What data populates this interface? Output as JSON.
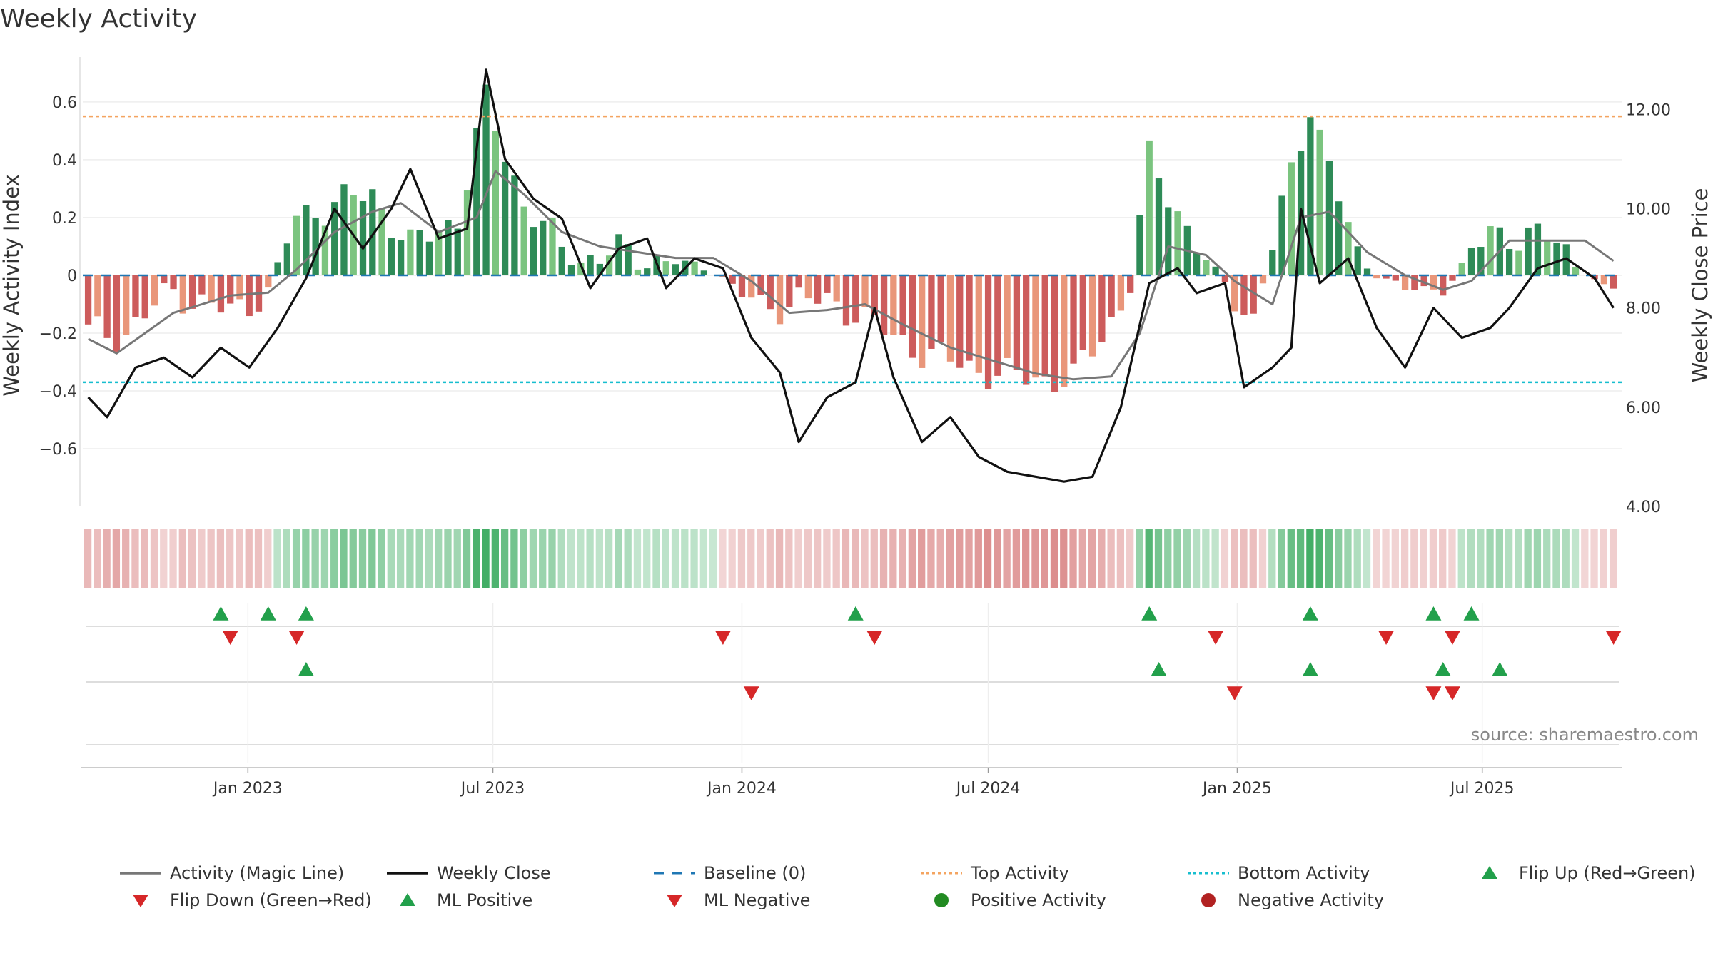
{
  "chart_data": {
    "type": "bar",
    "title": "Weekly Activity",
    "ylabel": "Weekly Activity Index",
    "y2label": "Weekly Close Price",
    "ylim": [
      -0.8,
      0.78
    ],
    "y2lim": [
      4.0,
      13.2
    ],
    "yticks": [
      0.6,
      0.4,
      0.2,
      0,
      -0.2,
      -0.4,
      -0.6
    ],
    "ytick_labels": [
      "0.6",
      "0.4",
      "0.2",
      "0",
      "−0.2",
      "−0.4",
      "−0.6"
    ],
    "y2ticks": [
      12.0,
      10.0,
      8.0,
      6.0,
      4.0
    ],
    "y2tick_labels": [
      "12.00",
      "10.00",
      "8.00",
      "6.00",
      "4.00"
    ],
    "xticks": [
      {
        "label": "Jan 2023",
        "date": "2023-01-01"
      },
      {
        "label": "Jul 2023",
        "date": "2023-07-01"
      },
      {
        "label": "Jan 2024",
        "date": "2024-01-01"
      },
      {
        "label": "Jul 2024",
        "date": "2024-07-01"
      },
      {
        "label": "Jan 2025",
        "date": "2025-01-01"
      },
      {
        "label": "Jul 2025",
        "date": "2025-07-01"
      }
    ],
    "x_start": "2022-09-05",
    "top_activity": 0.55,
    "bottom_activity": -0.37,
    "source": "source: sharemaestro.com",
    "colors": {
      "strong_green": "#2e8b57",
      "light_green": "#7bc47f",
      "strong_red": "#cd5c5c",
      "light_red": "#e9967a",
      "magic_line": "#777777",
      "close": "#111111",
      "baseline": "#1f77b4",
      "top": "#f4a460",
      "bottom": "#17becf",
      "marker_up": "#22a04b",
      "marker_down": "#d62728"
    },
    "activity_weeks": [
      {
        "date": "2022-09-05",
        "value": -0.2
      },
      {
        "date": "2022-10-03",
        "value": -0.2
      },
      {
        "date": "2022-11-07",
        "value": -0.05
      },
      {
        "date": "2022-11-28",
        "value": -0.1
      },
      {
        "date": "2022-12-19",
        "value": -0.13
      },
      {
        "date": "2023-01-16",
        "value": -0.05
      },
      {
        "date": "2023-02-06",
        "value": 0.2
      },
      {
        "date": "2023-03-06",
        "value": 0.25
      },
      {
        "date": "2023-04-03",
        "value": 0.28
      },
      {
        "date": "2023-05-01",
        "value": 0.1
      },
      {
        "date": "2023-06-05",
        "value": 0.2
      },
      {
        "date": "2023-06-26",
        "value": 0.6
      },
      {
        "date": "2023-07-24",
        "value": 0.25
      },
      {
        "date": "2023-08-28",
        "value": 0.05
      },
      {
        "date": "2023-10-02",
        "value": 0.08
      },
      {
        "date": "2023-11-06",
        "value": 0.05
      },
      {
        "date": "2023-12-11",
        "value": 0.02
      },
      {
        "date": "2024-01-15",
        "value": -0.12
      },
      {
        "date": "2024-02-12",
        "value": -0.08
      },
      {
        "date": "2024-03-25",
        "value": -0.12
      },
      {
        "date": "2024-04-22",
        "value": -0.22
      },
      {
        "date": "2024-06-03",
        "value": -0.3
      },
      {
        "date": "2024-07-15",
        "value": -0.35
      },
      {
        "date": "2024-09-02",
        "value": -0.36
      },
      {
        "date": "2024-10-14",
        "value": -0.05
      },
      {
        "date": "2024-10-28",
        "value": 0.4
      },
      {
        "date": "2024-12-09",
        "value": 0.05
      },
      {
        "date": "2025-01-13",
        "value": -0.15
      },
      {
        "date": "2025-02-24",
        "value": 0.6
      },
      {
        "date": "2025-03-31",
        "value": 0.05
      },
      {
        "date": "2025-05-05",
        "value": -0.05
      },
      {
        "date": "2025-06-02",
        "value": -0.05
      },
      {
        "date": "2025-07-07",
        "value": 0.15
      },
      {
        "date": "2025-08-25",
        "value": 0.12
      },
      {
        "date": "2025-09-29",
        "value": -0.05
      }
    ],
    "series": [
      {
        "name": "Activity (Magic Line)",
        "points": [
          [
            "2022-09-05",
            -0.22
          ],
          [
            "2022-09-26",
            -0.27
          ],
          [
            "2022-10-17",
            -0.2
          ],
          [
            "2022-11-07",
            -0.13
          ],
          [
            "2022-11-28",
            -0.1
          ],
          [
            "2022-12-19",
            -0.07
          ],
          [
            "2023-01-16",
            -0.06
          ],
          [
            "2023-02-06",
            0.02
          ],
          [
            "2023-03-06",
            0.15
          ],
          [
            "2023-04-03",
            0.22
          ],
          [
            "2023-04-24",
            0.25
          ],
          [
            "2023-05-22",
            0.15
          ],
          [
            "2023-06-19",
            0.2
          ],
          [
            "2023-07-03",
            0.36
          ],
          [
            "2023-07-24",
            0.28
          ],
          [
            "2023-08-21",
            0.15
          ],
          [
            "2023-09-18",
            0.1
          ],
          [
            "2023-10-16",
            0.08
          ],
          [
            "2023-11-13",
            0.06
          ],
          [
            "2023-12-11",
            0.06
          ],
          [
            "2024-01-08",
            -0.02
          ],
          [
            "2024-02-05",
            -0.13
          ],
          [
            "2024-03-04",
            -0.12
          ],
          [
            "2024-04-01",
            -0.1
          ],
          [
            "2024-04-29",
            -0.17
          ],
          [
            "2024-06-03",
            -0.25
          ],
          [
            "2024-07-08",
            -0.3
          ],
          [
            "2024-08-05",
            -0.34
          ],
          [
            "2024-09-02",
            -0.36
          ],
          [
            "2024-09-30",
            -0.35
          ],
          [
            "2024-10-21",
            -0.2
          ],
          [
            "2024-11-11",
            0.1
          ],
          [
            "2024-12-09",
            0.07
          ],
          [
            "2024-12-30",
            -0.02
          ],
          [
            "2025-01-27",
            -0.1
          ],
          [
            "2025-02-17",
            0.2
          ],
          [
            "2025-03-10",
            0.22
          ],
          [
            "2025-04-07",
            0.08
          ],
          [
            "2025-05-05",
            0.0
          ],
          [
            "2025-06-02",
            -0.05
          ],
          [
            "2025-06-23",
            -0.02
          ],
          [
            "2025-07-21",
            0.12
          ],
          [
            "2025-08-18",
            0.12
          ],
          [
            "2025-09-15",
            0.12
          ],
          [
            "2025-10-06",
            0.05
          ]
        ]
      },
      {
        "name": "Weekly Close",
        "axis": "right",
        "points": [
          [
            "2022-09-05",
            6.2
          ],
          [
            "2022-09-19",
            5.8
          ],
          [
            "2022-10-10",
            6.8
          ],
          [
            "2022-10-31",
            7.0
          ],
          [
            "2022-11-21",
            6.6
          ],
          [
            "2022-12-12",
            7.2
          ],
          [
            "2023-01-02",
            6.8
          ],
          [
            "2023-01-23",
            7.6
          ],
          [
            "2023-02-13",
            8.6
          ],
          [
            "2023-03-06",
            10.0
          ],
          [
            "2023-03-27",
            9.2
          ],
          [
            "2023-04-17",
            10.0
          ],
          [
            "2023-05-01",
            10.8
          ],
          [
            "2023-05-22",
            9.4
          ],
          [
            "2023-06-12",
            9.6
          ],
          [
            "2023-06-26",
            12.8
          ],
          [
            "2023-07-10",
            11.0
          ],
          [
            "2023-07-31",
            10.2
          ],
          [
            "2023-08-21",
            9.8
          ],
          [
            "2023-09-11",
            8.4
          ],
          [
            "2023-10-02",
            9.2
          ],
          [
            "2023-10-23",
            9.4
          ],
          [
            "2023-11-06",
            8.4
          ],
          [
            "2023-11-27",
            9.0
          ],
          [
            "2023-12-18",
            8.8
          ],
          [
            "2024-01-08",
            7.4
          ],
          [
            "2024-01-29",
            6.7
          ],
          [
            "2024-02-12",
            5.3
          ],
          [
            "2024-03-04",
            6.2
          ],
          [
            "2024-03-25",
            6.5
          ],
          [
            "2024-04-08",
            8.0
          ],
          [
            "2024-04-22",
            6.6
          ],
          [
            "2024-05-13",
            5.3
          ],
          [
            "2024-06-03",
            5.8
          ],
          [
            "2024-06-24",
            5.0
          ],
          [
            "2024-07-15",
            4.7
          ],
          [
            "2024-08-05",
            4.6
          ],
          [
            "2024-08-26",
            4.5
          ],
          [
            "2024-09-16",
            4.6
          ],
          [
            "2024-10-07",
            6.0
          ],
          [
            "2024-10-28",
            8.5
          ],
          [
            "2024-11-18",
            8.8
          ],
          [
            "2024-12-02",
            8.3
          ],
          [
            "2024-12-23",
            8.5
          ],
          [
            "2025-01-06",
            6.4
          ],
          [
            "2025-01-27",
            6.8
          ],
          [
            "2025-02-10",
            7.2
          ],
          [
            "2025-02-17",
            10.0
          ],
          [
            "2025-03-03",
            8.5
          ],
          [
            "2025-03-24",
            9.0
          ],
          [
            "2025-04-14",
            7.6
          ],
          [
            "2025-05-05",
            6.8
          ],
          [
            "2025-05-26",
            8.0
          ],
          [
            "2025-06-16",
            7.4
          ],
          [
            "2025-07-07",
            7.6
          ],
          [
            "2025-07-21",
            8.0
          ],
          [
            "2025-08-11",
            8.8
          ],
          [
            "2025-09-01",
            9.0
          ],
          [
            "2025-09-22",
            8.6
          ],
          [
            "2025-10-06",
            8.0
          ]
        ]
      }
    ],
    "markers": {
      "row1_up": [
        "2022-12-12",
        "2023-01-16",
        "2023-02-13",
        "2024-03-25",
        "2024-10-28",
        "2025-02-24",
        "2025-05-26",
        "2025-06-23"
      ],
      "row1_down": [
        "2022-12-19",
        "2023-02-06",
        "2023-12-18",
        "2024-04-08",
        "2024-12-16",
        "2025-04-21",
        "2025-06-09",
        "2025-10-06"
      ],
      "row2_up": [
        "2023-02-13",
        "2024-11-04",
        "2025-02-24",
        "2025-06-02",
        "2025-07-14"
      ],
      "row2_down": [
        "2024-01-08",
        "2024-12-30",
        "2025-05-26",
        "2025-06-09"
      ]
    },
    "legend": [
      {
        "label": "Activity (Magic Line)",
        "kind": "line",
        "color": "#777777"
      },
      {
        "label": "Weekly Close",
        "kind": "line",
        "color": "#111111"
      },
      {
        "label": "Baseline (0)",
        "kind": "dash",
        "color": "#1f77b4"
      },
      {
        "label": "Top Activity",
        "kind": "dot-line",
        "color": "#f4a460"
      },
      {
        "label": "Bottom Activity",
        "kind": "dot-line",
        "color": "#17becf"
      },
      {
        "label": "Flip Up (Red→Green)",
        "kind": "tri-up",
        "color": "#22a04b"
      },
      {
        "label": "Flip Down (Green→Red)",
        "kind": "tri-down",
        "color": "#d62728"
      },
      {
        "label": "ML Positive",
        "kind": "tri-up",
        "color": "#22a04b"
      },
      {
        "label": "ML Negative",
        "kind": "tri-down",
        "color": "#d62728"
      },
      {
        "label": "Positive Activity",
        "kind": "circle",
        "color": "#228b22"
      },
      {
        "label": "Negative Activity",
        "kind": "circle",
        "color": "#b22222"
      }
    ],
    "legend_position": "bottom"
  }
}
